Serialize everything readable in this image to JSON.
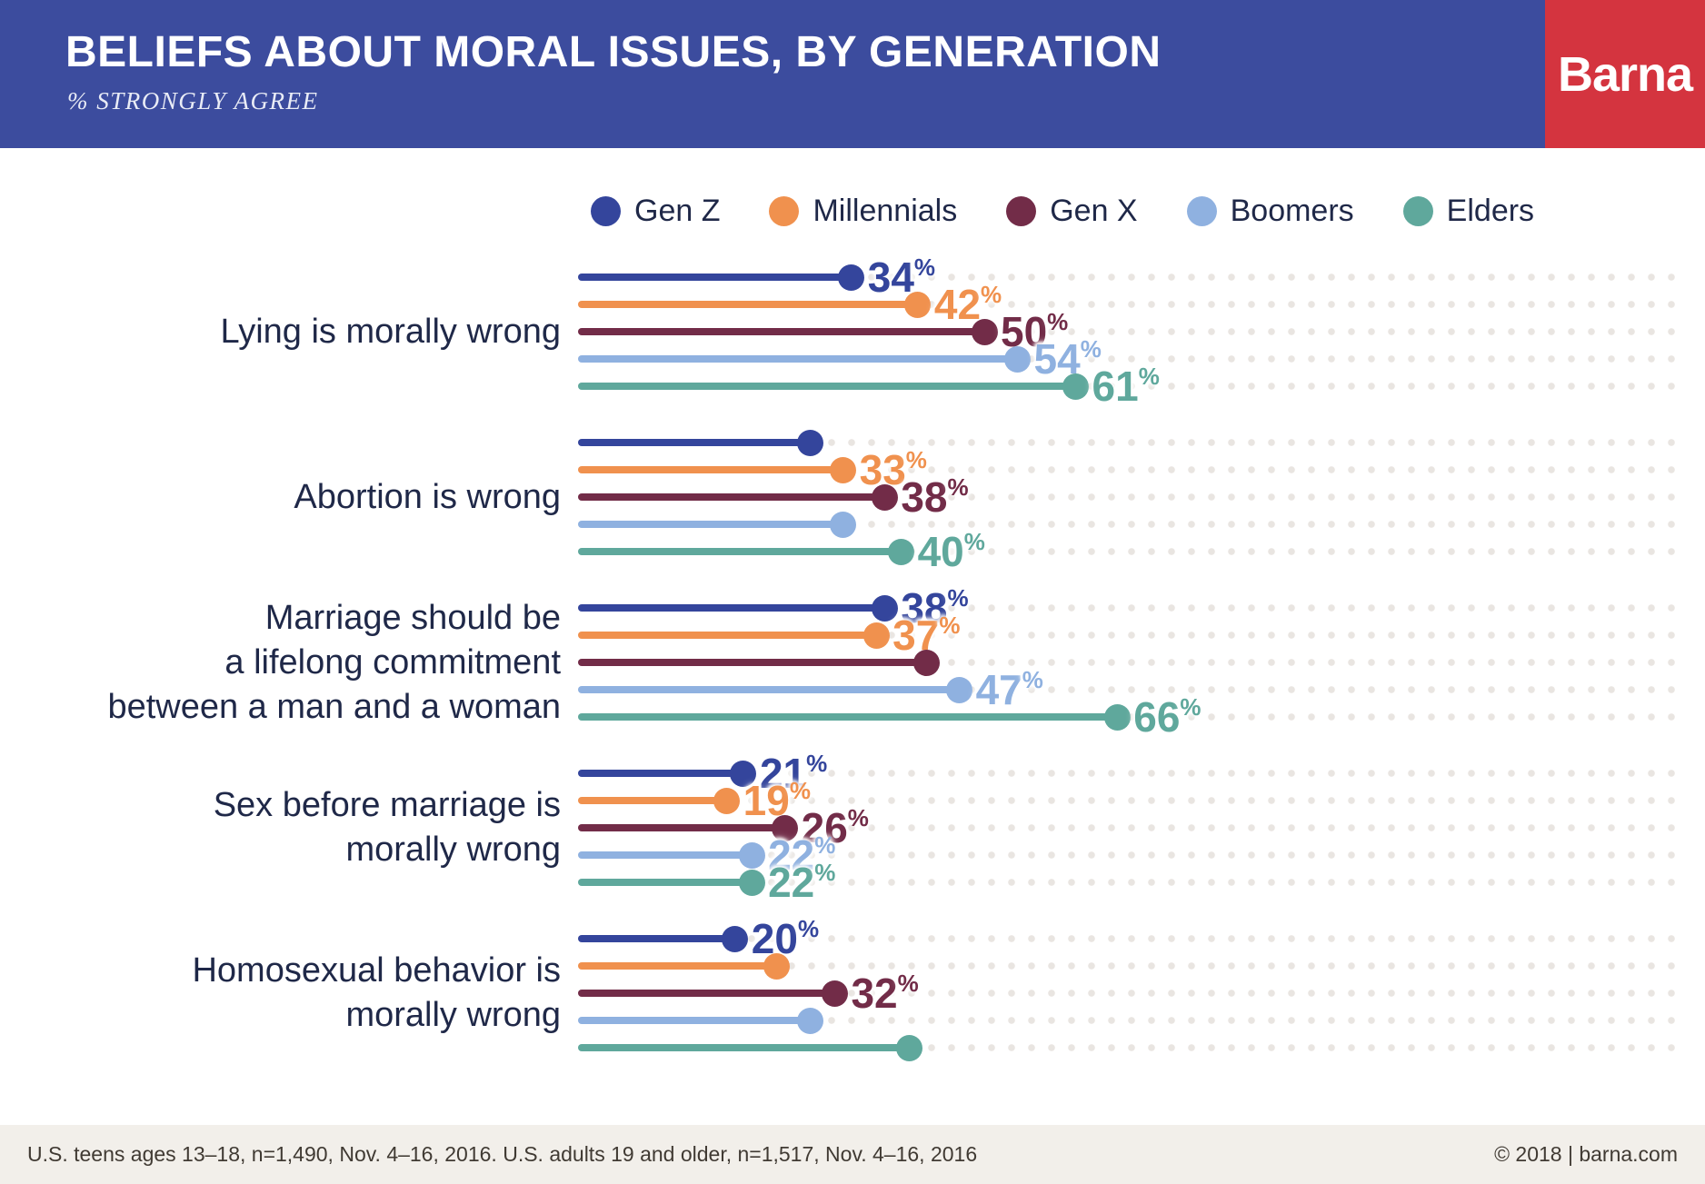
{
  "header": {
    "title": "BELIEFS ABOUT MORAL ISSUES, BY GENERATION",
    "subtitle": "% STRONGLY AGREE",
    "logo": "Barna"
  },
  "legend": [
    {
      "label": "Gen Z",
      "color": "#34459c"
    },
    {
      "label": "Millennials",
      "color": "#f0914e"
    },
    {
      "label": "Gen X",
      "color": "#722c48"
    },
    {
      "label": "Boomers",
      "color": "#8fb1e0"
    },
    {
      "label": "Elders",
      "color": "#5fa89c"
    }
  ],
  "chart_data": {
    "type": "bar",
    "subtype": "horizontal-lollipop",
    "unit": "%",
    "title": "BELIEFS ABOUT MORAL ISSUES, BY GENERATION",
    "subtitle": "% STRONGLY AGREE",
    "axis_shown": false,
    "legend_position": "top",
    "generations": [
      "Gen Z",
      "Millennials",
      "Gen X",
      "Boomers",
      "Elders"
    ],
    "series_colors": [
      "#34459c",
      "#f0914e",
      "#722c48",
      "#8fb1e0",
      "#5fa89c"
    ],
    "groups": [
      {
        "category": "Lying is morally wrong",
        "category_lines": [
          "Lying is morally wrong"
        ],
        "values": [
          34,
          42,
          50,
          54,
          61
        ],
        "labels_shown": [
          true,
          true,
          true,
          true,
          true
        ]
      },
      {
        "category": "Abortion is wrong",
        "category_lines": [
          "Abortion is wrong"
        ],
        "values": [
          29,
          33,
          38,
          33,
          40
        ],
        "labels_shown": [
          false,
          true,
          true,
          false,
          true
        ]
      },
      {
        "category": "Marriage should be a lifelong commitment between a man and a woman",
        "category_lines": [
          "Marriage should be",
          "a lifelong commitment",
          "between a man and a woman"
        ],
        "values": [
          38,
          37,
          43,
          47,
          66
        ],
        "labels_shown": [
          true,
          true,
          false,
          true,
          true
        ]
      },
      {
        "category": "Sex before marriage is morally wrong",
        "category_lines": [
          "Sex before marriage is",
          "morally wrong"
        ],
        "values": [
          21,
          19,
          26,
          22,
          22
        ],
        "labels_shown": [
          true,
          true,
          true,
          true,
          true
        ]
      },
      {
        "category": "Homosexual behavior is morally wrong",
        "category_lines": [
          "Homosexual behavior is",
          "morally wrong"
        ],
        "values": [
          20,
          25,
          32,
          29,
          41
        ],
        "labels_shown": [
          true,
          false,
          true,
          false,
          false
        ]
      }
    ]
  },
  "footer": {
    "source": "U.S. teens ages 13–18, n=1,490, Nov. 4–16, 2016. U.S. adults 19 and older, n=1,517, Nov. 4–16, 2016",
    "copyright": "© 2018 | barna.com"
  }
}
